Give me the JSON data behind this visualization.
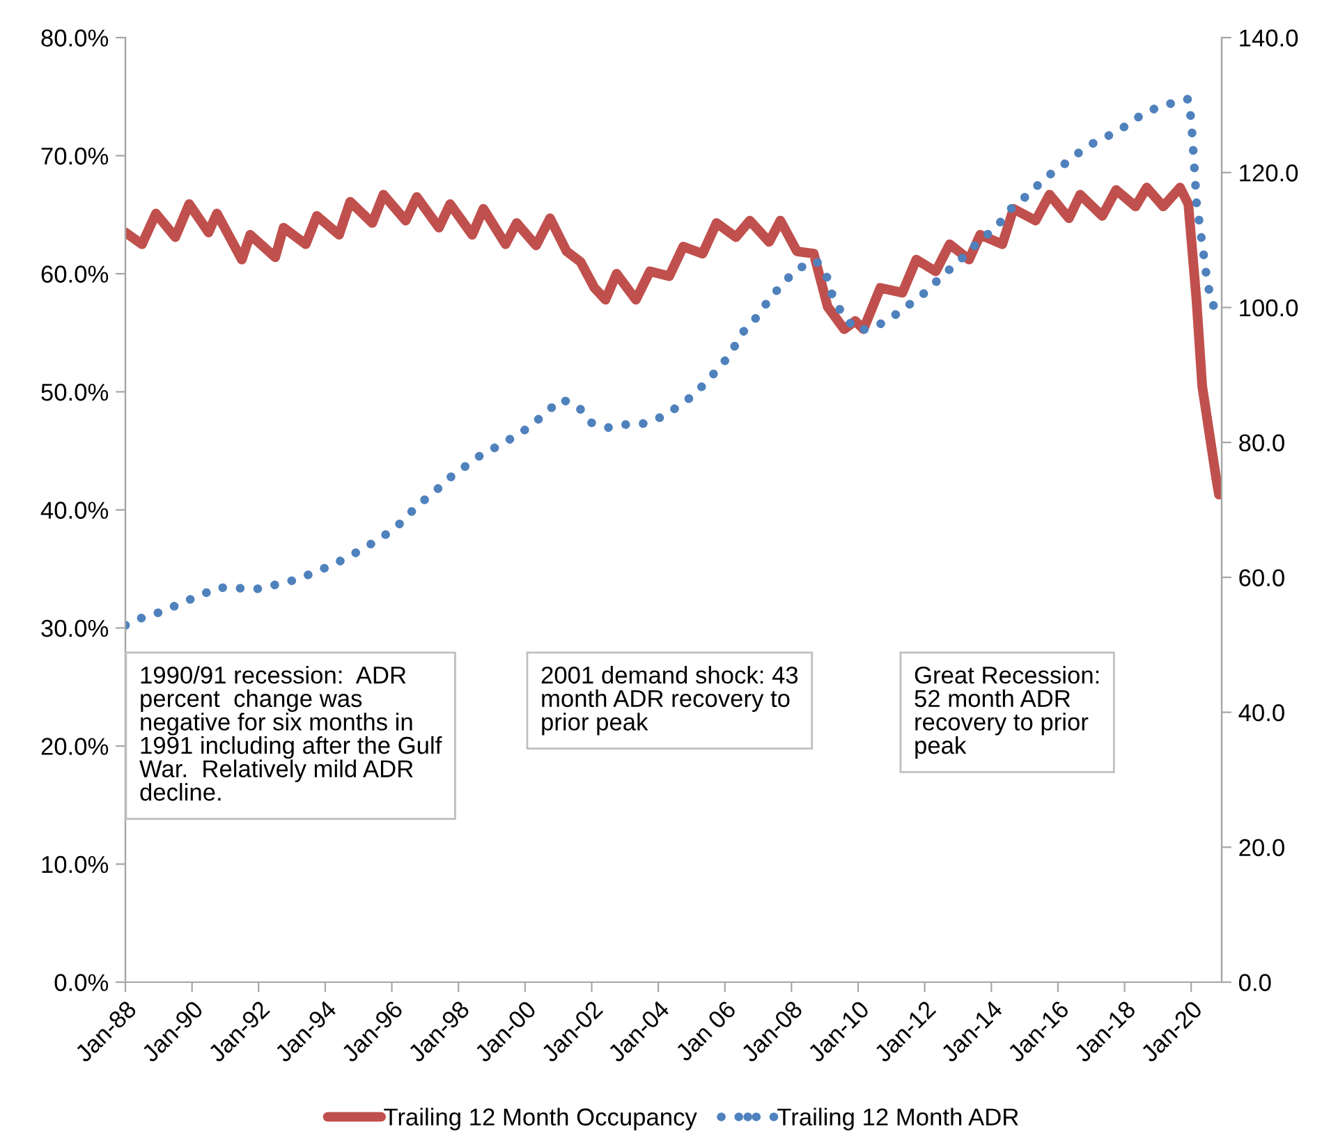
{
  "chart_data": {
    "type": "line",
    "xlim": [
      "1988-01",
      "2020-12"
    ],
    "xticks": [
      {
        "value": "1988-01",
        "label": "Jan-88"
      },
      {
        "value": "1990-01",
        "label": "Jan-90"
      },
      {
        "value": "1992-01",
        "label": "Jan-92"
      },
      {
        "value": "1994-01",
        "label": "Jan-94"
      },
      {
        "value": "1996-01",
        "label": "Jan-96"
      },
      {
        "value": "1998-01",
        "label": "Jan-98"
      },
      {
        "value": "2000-01",
        "label": "Jan-00"
      },
      {
        "value": "2002-01",
        "label": "Jan-02"
      },
      {
        "value": "2004-01",
        "label": "Jan-04"
      },
      {
        "value": "2006-01",
        "label": "Jan 06"
      },
      {
        "value": "2008-01",
        "label": "Jan-08"
      },
      {
        "value": "2010-01",
        "label": "Jan-10"
      },
      {
        "value": "2012-01",
        "label": "Jan-12"
      },
      {
        "value": "2014-01",
        "label": "Jan-14"
      },
      {
        "value": "2016-01",
        "label": "Jan-16"
      },
      {
        "value": "2018-01",
        "label": "Jan-18"
      },
      {
        "value": "2020-01",
        "label": "Jan-20"
      }
    ],
    "ylim": [
      0,
      80
    ],
    "yticks": [
      {
        "value": 0,
        "label": "0.0%"
      },
      {
        "value": 10,
        "label": "10.0%"
      },
      {
        "value": 20,
        "label": "20.0%"
      },
      {
        "value": 30,
        "label": "30.0%"
      },
      {
        "value": 40,
        "label": "40.0%"
      },
      {
        "value": 50,
        "label": "50.0%"
      },
      {
        "value": 60,
        "label": "60.0%"
      },
      {
        "value": 70,
        "label": "70.0%"
      },
      {
        "value": 80,
        "label": "80.0%"
      }
    ],
    "y2lim": [
      0,
      140
    ],
    "y2ticks": [
      {
        "value": 0,
        "label": "0.0"
      },
      {
        "value": 20,
        "label": "20.0"
      },
      {
        "value": 40,
        "label": "40.0"
      },
      {
        "value": 60,
        "label": "60.0"
      },
      {
        "value": 80,
        "label": "80.0"
      },
      {
        "value": 100,
        "label": "100.0"
      },
      {
        "value": 120,
        "label": "120.0"
      },
      {
        "value": 140,
        "label": "140.0"
      }
    ],
    "grid": false,
    "legend": "bottom",
    "marker": "none",
    "annotations": [
      "1990/91 recession:  ADR\npercent  change was\nnegative for six months in\n1991 including after the Gulf\nWar.  Relatively mild ADR\ndecline.",
      "2001 demand shock: 43\nmonth ADR recovery to\nprior peak",
      "Great Recession:\n52 month ADR\nrecovery to prior\npeak"
    ],
    "series": [
      {
        "name": "Trailing 12 Month Occupancy",
        "color": "#c0504d",
        "line_style": "solid",
        "x": [
          "1988-01",
          "1988-07",
          "1988-12",
          "1989-07",
          "1989-12",
          "1990-07",
          "1990-10",
          "1991-07",
          "1991-10",
          "1992-07",
          "1992-10",
          "1993-06",
          "1993-10",
          "1994-06",
          "1994-10",
          "1995-06",
          "1995-10",
          "1996-06",
          "1996-10",
          "1997-06",
          "1997-10",
          "1998-06",
          "1998-10",
          "1999-06",
          "1999-10",
          "2000-05",
          "2000-10",
          "2001-04",
          "2001-09",
          "2002-02",
          "2002-06",
          "2002-10",
          "2003-05",
          "2003-10",
          "2004-05",
          "2004-10",
          "2005-05",
          "2005-10",
          "2006-05",
          "2006-10",
          "2007-05",
          "2007-09",
          "2008-03",
          "2008-09",
          "2009-02",
          "2009-08",
          "2009-12",
          "2010-03",
          "2010-09",
          "2011-05",
          "2011-10",
          "2012-05",
          "2012-10",
          "2013-05",
          "2013-09",
          "2014-05",
          "2014-09",
          "2015-05",
          "2015-10",
          "2016-05",
          "2016-09",
          "2017-05",
          "2017-10",
          "2018-05",
          "2018-09",
          "2019-03",
          "2019-09",
          "2019-12",
          "2020-03",
          "2020-05",
          "2020-08",
          "2020-10",
          "2020-11"
        ],
        "values": [
          63.5,
          62.5,
          65.1,
          63.1,
          65.9,
          63.5,
          65.1,
          61.2,
          63.3,
          61.4,
          63.9,
          62.5,
          64.9,
          63.3,
          66.1,
          64.3,
          66.7,
          64.5,
          66.5,
          63.9,
          65.9,
          63.3,
          65.5,
          62.5,
          64.3,
          62.4,
          64.7,
          61.9,
          61.0,
          58.8,
          57.8,
          60.0,
          57.8,
          60.2,
          59.8,
          62.3,
          61.7,
          64.3,
          63.1,
          64.5,
          62.7,
          64.5,
          61.9,
          61.7,
          57.2,
          55.3,
          56.0,
          55.3,
          58.8,
          58.4,
          61.2,
          60.2,
          62.5,
          61.2,
          63.3,
          62.5,
          65.5,
          64.5,
          66.7,
          64.7,
          66.7,
          64.9,
          67.1,
          65.7,
          67.3,
          65.7,
          67.3,
          65.9,
          57.6,
          50.5,
          45.8,
          42.7,
          41.3
        ]
      },
      {
        "name": "Trailing 12 Month ADR",
        "color": "#4f81bd",
        "line_style": "dotted",
        "axis": "y2",
        "x": [
          "1988-01",
          "1988-08",
          "1989-03",
          "1989-09",
          "1990-04",
          "1990-10",
          "1991-05",
          "1992-01",
          "1992-08",
          "1993-03",
          "1993-10",
          "1994-04",
          "1994-11",
          "1995-05",
          "1995-11",
          "1996-05",
          "1996-10",
          "1997-04",
          "1997-09",
          "1998-03",
          "1998-09",
          "1999-03",
          "1999-09",
          "2000-03",
          "2000-09",
          "2001-02",
          "2001-08",
          "2002-01",
          "2002-07",
          "2003-02",
          "2003-08",
          "2004-03",
          "2004-08",
          "2005-02",
          "2005-07",
          "2005-12",
          "2006-04",
          "2006-08",
          "2007-01",
          "2007-05",
          "2007-10",
          "2008-03",
          "2008-10",
          "2009-02",
          "2009-04",
          "2009-08",
          "2010-01",
          "2010-08",
          "2011-02",
          "2011-08",
          "2012-02",
          "2012-07",
          "2013-01",
          "2013-06",
          "2013-11",
          "2014-04",
          "2014-09",
          "2015-03",
          "2015-08",
          "2016-02",
          "2016-07",
          "2017-01",
          "2017-07",
          "2018-01",
          "2018-07",
          "2018-12",
          "2019-07",
          "2019-12",
          "2020-01",
          "2020-02",
          "2020-03",
          "2020-04",
          "2020-05",
          "2020-06",
          "2020-07",
          "2020-08",
          "2020-09"
        ],
        "values": [
          52.9,
          54.2,
          55.0,
          56.2,
          57.3,
          58.5,
          58.4,
          58.3,
          59.0,
          59.7,
          60.9,
          61.9,
          63.4,
          64.8,
          66.4,
          68.3,
          70.6,
          72.5,
          74.5,
          76.3,
          78.1,
          79.4,
          80.8,
          82.4,
          84.6,
          86.4,
          85.4,
          82.9,
          82.2,
          82.7,
          82.8,
          83.9,
          85.3,
          87.1,
          89.3,
          91.5,
          93.9,
          96.6,
          98.8,
          101.2,
          103.6,
          105.7,
          106.9,
          104.3,
          101.4,
          98.6,
          96.5,
          97.3,
          98.8,
          100.6,
          102.5,
          104.6,
          106.7,
          108.8,
          110.6,
          112.5,
          115.1,
          116.9,
          119.1,
          120.8,
          122.5,
          124.2,
          125.4,
          126.8,
          128.5,
          129.5,
          130.4,
          130.9,
          127.8,
          121.7,
          115.5,
          112.5,
          109.4,
          106.3,
          103.3,
          101.8,
          100.3
        ]
      }
    ]
  }
}
